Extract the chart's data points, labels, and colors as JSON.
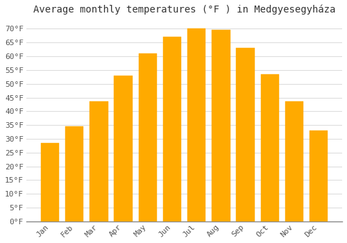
{
  "title": "Average monthly temperatures (°F ) in Medgyesegyháza",
  "months": [
    "Jan",
    "Feb",
    "Mar",
    "Apr",
    "May",
    "Jun",
    "Jul",
    "Aug",
    "Sep",
    "Oct",
    "Nov",
    "Dec"
  ],
  "values": [
    28.5,
    34.5,
    43.5,
    53,
    61,
    67,
    70,
    69.5,
    63,
    53.5,
    43.5,
    33
  ],
  "bar_color": "#FFAA00",
  "bar_edge_color": "#FFAA00",
  "background_color": "#FFFFFF",
  "grid_color": "#DDDDDD",
  "title_fontsize": 10,
  "tick_fontsize": 8,
  "ylim": [
    0,
    73
  ],
  "yticks": [
    0,
    5,
    10,
    15,
    20,
    25,
    30,
    35,
    40,
    45,
    50,
    55,
    60,
    65,
    70
  ]
}
